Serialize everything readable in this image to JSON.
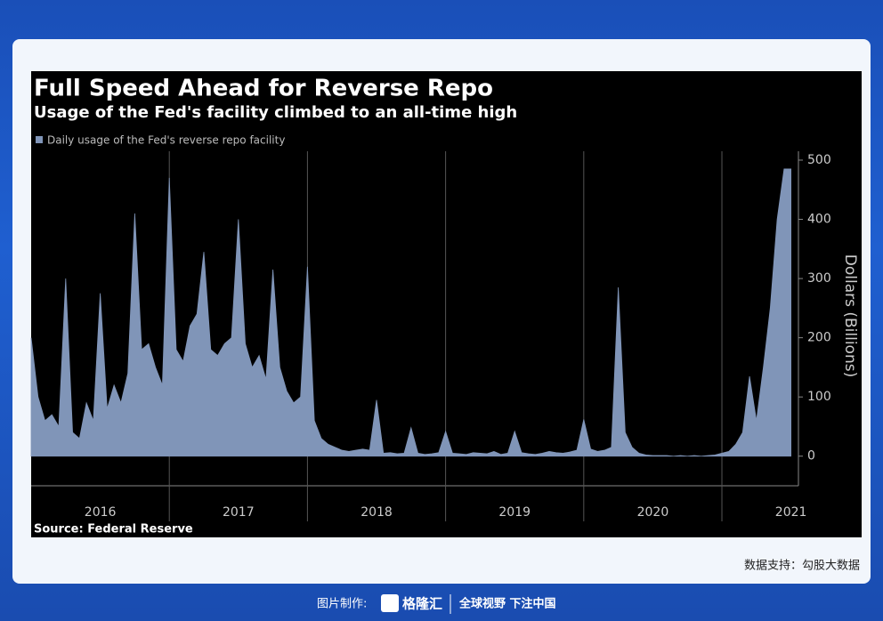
{
  "chart_data": {
    "type": "area",
    "title": "Full Speed Ahead for Reverse Repo",
    "subtitle": "Usage of the Fed's facility climbed to an all-time high",
    "y_label": "Dollars (Billions)",
    "source": "Source: Federal Reserve",
    "x": [
      2016.0,
      2016.05,
      2016.1,
      2016.15,
      2016.2,
      2016.25,
      2016.3,
      2016.35,
      2016.4,
      2016.45,
      2016.5,
      2016.55,
      2016.6,
      2016.65,
      2016.7,
      2016.75,
      2016.8,
      2016.85,
      2016.9,
      2016.95,
      2017.0,
      2017.05,
      2017.1,
      2017.15,
      2017.2,
      2017.25,
      2017.3,
      2017.35,
      2017.4,
      2017.45,
      2017.5,
      2017.55,
      2017.6,
      2017.65,
      2017.7,
      2017.75,
      2017.8,
      2017.85,
      2017.9,
      2017.95,
      2018.0,
      2018.05,
      2018.1,
      2018.15,
      2018.2,
      2018.25,
      2018.3,
      2018.35,
      2018.4,
      2018.45,
      2018.5,
      2018.55,
      2018.6,
      2018.65,
      2018.7,
      2018.75,
      2018.8,
      2018.85,
      2018.9,
      2018.95,
      2019.0,
      2019.05,
      2019.1,
      2019.15,
      2019.2,
      2019.25,
      2019.3,
      2019.35,
      2019.4,
      2019.45,
      2019.5,
      2019.55,
      2019.6,
      2019.65,
      2019.7,
      2019.75,
      2019.8,
      2019.85,
      2019.9,
      2019.95,
      2020.0,
      2020.05,
      2020.1,
      2020.15,
      2020.2,
      2020.25,
      2020.3,
      2020.35,
      2020.4,
      2020.45,
      2020.5,
      2020.55,
      2020.6,
      2020.65,
      2020.7,
      2020.75,
      2020.8,
      2020.85,
      2020.9,
      2020.95,
      2021.0,
      2021.05,
      2021.1,
      2021.15,
      2021.2,
      2021.25,
      2021.3,
      2021.35,
      2021.4,
      2021.45,
      2021.5
    ],
    "series": [
      {
        "name": "Daily usage of the Fed's reverse repo facility",
        "color": "#8095b8",
        "values": [
          200,
          100,
          60,
          70,
          50,
          300,
          40,
          30,
          90,
          60,
          275,
          80,
          120,
          90,
          140,
          410,
          180,
          190,
          150,
          120,
          470,
          180,
          160,
          220,
          240,
          345,
          180,
          170,
          190,
          200,
          400,
          190,
          150,
          170,
          130,
          315,
          150,
          110,
          90,
          100,
          320,
          60,
          30,
          20,
          15,
          10,
          8,
          10,
          12,
          10,
          95,
          5,
          6,
          4,
          5,
          48,
          5,
          3,
          4,
          6,
          42,
          5,
          4,
          3,
          6,
          5,
          4,
          8,
          3,
          5,
          42,
          6,
          4,
          3,
          5,
          8,
          6,
          5,
          7,
          10,
          62,
          12,
          8,
          10,
          15,
          285,
          40,
          15,
          5,
          2,
          1,
          1,
          1,
          0,
          1,
          0,
          1,
          0,
          1,
          2,
          5,
          8,
          20,
          40,
          135,
          60,
          150,
          250,
          400,
          485,
          485
        ]
      }
    ],
    "xlim": [
      2016.0,
      2021.554
    ],
    "xticks": [
      {
        "value": 2016.5,
        "label": "2016"
      },
      {
        "value": 2017.5,
        "label": "2017"
      },
      {
        "value": 2018.5,
        "label": "2018"
      },
      {
        "value": 2019.5,
        "label": "2019"
      },
      {
        "value": 2020.5,
        "label": "2020"
      },
      {
        "value": 2021.5,
        "label": "2021"
      }
    ],
    "ylim": [
      -50,
      530
    ],
    "yticks": [
      0,
      100,
      200,
      300,
      400,
      500
    ]
  },
  "footer": {
    "data_credit": "数据支持：勾股大数据",
    "made_by": "图片制作:",
    "brand": "格隆汇",
    "slogan": "全球视野 下注中国"
  }
}
